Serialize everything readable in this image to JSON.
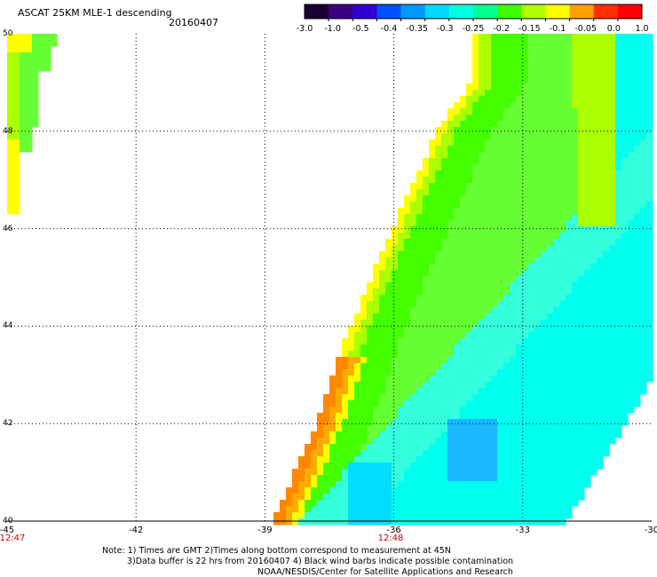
{
  "header": {
    "title": "ASCAT 25KM MLE-1 descending",
    "date": "20160407"
  },
  "colorbar": {
    "labels": [
      "-3.0",
      "-1.0",
      "-0.5",
      "-0.4",
      "-0.35",
      "-0.3",
      "-0.25",
      "-0.2",
      "-0.15",
      "-0.1",
      "-0.05",
      "0.0",
      "1.0"
    ],
    "colors": [
      "#1a0033",
      "#3a0080",
      "#3000d0",
      "#0050ff",
      "#0098ff",
      "#00d8ff",
      "#00ffe0",
      "#00ff90",
      "#40ff00",
      "#b0ff00",
      "#ffff00",
      "#ffa000",
      "#ff3000",
      "#ff0000"
    ]
  },
  "axes": {
    "x_ticks": [
      "-45",
      "-42",
      "-39",
      "-36",
      "-33",
      "-30"
    ],
    "y_ticks": [
      "50",
      "48",
      "46",
      "44",
      "42",
      "40"
    ],
    "times": [
      "12:47",
      "12:48"
    ]
  },
  "map": {
    "lon_range": [
      -45,
      -30
    ],
    "lat_range": [
      40,
      50
    ],
    "grid": true,
    "field_colors": {
      "cyan": "#00ffee",
      "lightcyan": "#33ffdd",
      "aqua": "#00ddff",
      "blue": "#1ab8ff",
      "green": "#44ff00",
      "lightgreen": "#66ff33",
      "yellowgreen": "#aaff00",
      "yellow": "#ffff00",
      "orange": "#ffaa00",
      "deeporange": "#ff8800"
    }
  },
  "notes": {
    "line1": "Note: 1) Times are GMT 2)Times along bottom correspond to measurement at 45N",
    "line2": "3)Data buffer is 22 hrs from 20160407 4) Black wind barbs indicate possible contamination",
    "line3": "NOAA/NESDIS/Center for Satellite Applications and Research"
  }
}
